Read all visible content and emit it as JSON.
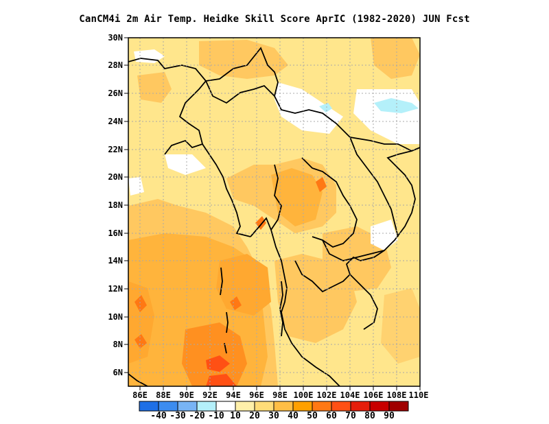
{
  "title": "CanCM4i  2m Air Temp. Heidke Skill Score AprIC (1982-2020) JUN Fcst",
  "axes": {
    "lon_ticks": [
      "86E",
      "88E",
      "90E",
      "92E",
      "94E",
      "96E",
      "98E",
      "100E",
      "102E",
      "104E",
      "106E",
      "108E",
      "110E"
    ],
    "lat_ticks": [
      "30N",
      "28N",
      "26N",
      "24N",
      "22N",
      "20N",
      "18N",
      "16N",
      "14N",
      "12N",
      "10N",
      "8N",
      "6N"
    ],
    "lon_range": [
      85,
      110
    ],
    "lat_range": [
      5,
      30
    ]
  },
  "colorbar": {
    "labels": [
      "-40",
      "-30",
      "-20",
      "-10",
      "10",
      "20",
      "30",
      "40",
      "50",
      "60",
      "70",
      "80",
      "90"
    ],
    "colors": [
      "#1e6fe6",
      "#3c8cf0",
      "#78b4f5",
      "#b4f0fa",
      "#ffffff",
      "#fff0aa",
      "#ffdc78",
      "#ffbe46",
      "#ffa000",
      "#ff7814",
      "#ff5014",
      "#e61e0a",
      "#c80000",
      "#a00000"
    ]
  },
  "map_colors": {
    "background": "#ffe68c",
    "ocean_base": "#ffc860",
    "coast": "#000000",
    "grid": "#a8a8a8"
  }
}
